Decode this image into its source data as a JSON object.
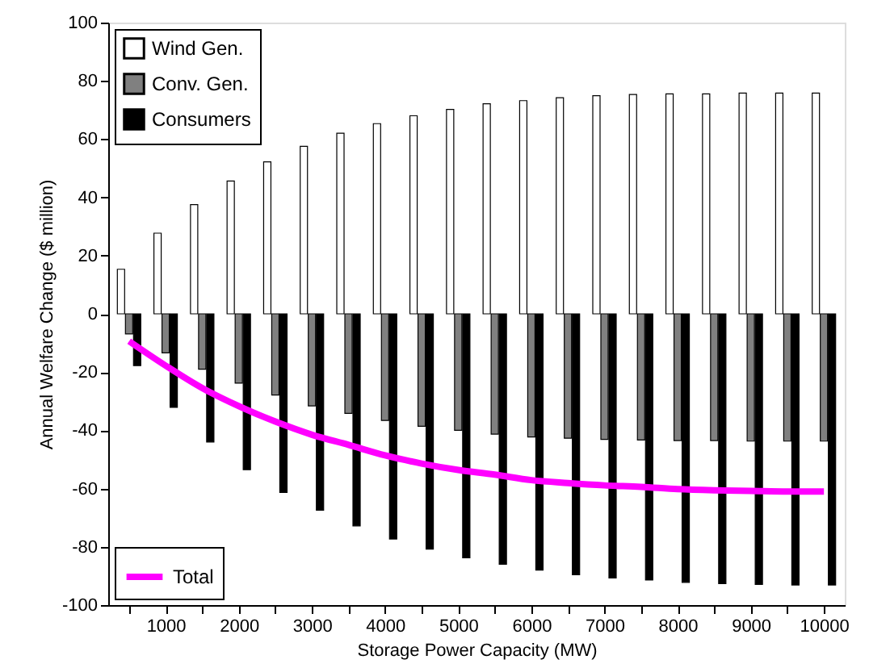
{
  "chart_data": {
    "type": "bar",
    "xlabel": "Storage Power Capacity (MW)",
    "ylabel": "Annual Welfare Change ($ million)",
    "x": [
      500,
      1000,
      1500,
      2000,
      2500,
      3000,
      3500,
      4000,
      4500,
      5000,
      5500,
      6000,
      6500,
      7000,
      7500,
      8000,
      8500,
      9000,
      9500,
      10000
    ],
    "series": [
      {
        "name": "Wind Gen.",
        "color": "#ffffff",
        "values": [
          15.3,
          27.7,
          37.5,
          45.6,
          52.2,
          57.5,
          62,
          65.3,
          68,
          70.2,
          72.1,
          73.2,
          74.2,
          74.9,
          75.3,
          75.5,
          75.5,
          75.8,
          75.8,
          75.8
        ]
      },
      {
        "name": "Conv. Gen.",
        "color": "#808080",
        "values": [
          -6.9,
          -13.4,
          -19,
          -23.8,
          -27.9,
          -31.6,
          -34.2,
          -36.6,
          -38.6,
          -40,
          -41.3,
          -42.3,
          -42.7,
          -43.1,
          -43.3,
          -43.5,
          -43.5,
          -43.7,
          -43.7,
          -43.7
        ]
      },
      {
        "name": "Consumers",
        "color": "#000000",
        "values": [
          -17.8,
          -32.1,
          -44,
          -53.5,
          -61.3,
          -67.4,
          -72.8,
          -77.3,
          -80.8,
          -83.8,
          -86,
          -88,
          -89.6,
          -90.7,
          -91.4,
          -92.2,
          -92.6,
          -92.9,
          -93.1,
          -93.1
        ]
      },
      {
        "name": "Total",
        "type": "line",
        "color": "#ff00ff",
        "values": [
          -9.4,
          -17.8,
          -25.5,
          -31.7,
          -37,
          -41.5,
          -45,
          -48.6,
          -51.4,
          -53.6,
          -55.2,
          -57.1,
          -58.1,
          -58.9,
          -59.4,
          -60.2,
          -60.6,
          -60.8,
          -61,
          -61
        ]
      }
    ],
    "xlim": [
      215,
      10285
    ],
    "xticks": [
      {
        "value": 500,
        "label": null
      },
      1000,
      {
        "value": 1500,
        "label": null
      },
      2000,
      {
        "value": 2500,
        "label": null
      },
      3000,
      {
        "value": 3500,
        "label": null
      },
      4000,
      {
        "value": 4500,
        "label": null
      },
      5000,
      {
        "value": 5500,
        "label": null
      },
      6000,
      {
        "value": 6500,
        "label": null
      },
      7000,
      {
        "value": 7500,
        "label": null
      },
      8000,
      {
        "value": 8500,
        "label": null
      },
      9000,
      {
        "value": 9500,
        "label": null
      },
      10000
    ],
    "ylim": [
      -100,
      100
    ],
    "yticks": [
      -100,
      -80,
      -60,
      -40,
      -20,
      0,
      20,
      40,
      60,
      80,
      100
    ],
    "grid": false,
    "legend": "top left"
  }
}
